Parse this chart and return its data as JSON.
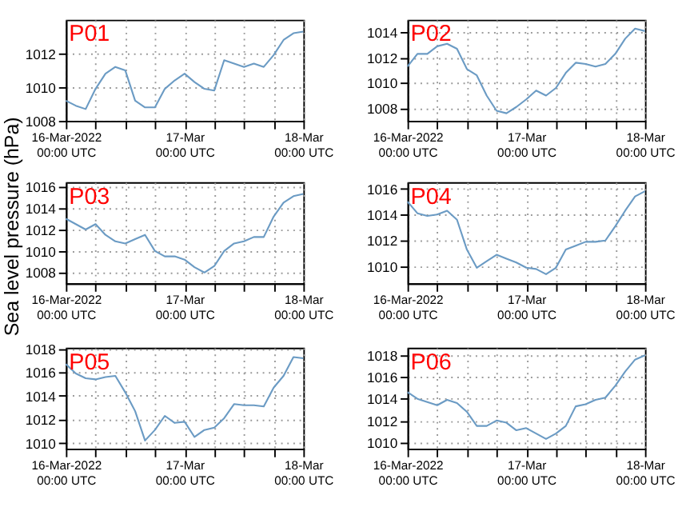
{
  "chart_data": [
    {
      "type": "line",
      "title": "P01",
      "color": "#6b9bc4",
      "grid": true,
      "x": [
        "2022-03-16T00:00",
        "2022-03-16T02:00",
        "2022-03-16T04:00",
        "2022-03-16T06:00",
        "2022-03-16T08:00",
        "2022-03-16T10:00",
        "2022-03-16T12:00",
        "2022-03-16T14:00",
        "2022-03-16T16:00",
        "2022-03-16T18:00",
        "2022-03-16T20:00",
        "2022-03-16T22:00",
        "2022-03-17T00:00",
        "2022-03-17T02:00",
        "2022-03-17T04:00",
        "2022-03-17T06:00",
        "2022-03-17T08:00",
        "2022-03-17T10:00",
        "2022-03-17T12:00",
        "2022-03-17T14:00",
        "2022-03-17T16:00",
        "2022-03-17T18:00",
        "2022-03-17T20:00",
        "2022-03-17T22:00",
        "2022-03-18T00:00"
      ],
      "values": [
        1009.2,
        1008.9,
        1008.7,
        1009.9,
        1010.8,
        1011.2,
        1011.0,
        1009.2,
        1008.8,
        1008.8,
        1009.9,
        1010.4,
        1010.8,
        1010.3,
        1009.9,
        1009.8,
        1011.6,
        1011.4,
        1011.2,
        1011.4,
        1011.2,
        1011.9,
        1012.8,
        1013.2,
        1013.3
      ],
      "xlim": [
        "2022-03-16T00:00",
        "2022-03-18T00:00"
      ],
      "xticks": [
        {
          "value": "2022-03-16T00:00",
          "label": "16-Mar-2022\n00:00 UTC"
        },
        {
          "value": "2022-03-16T06:00",
          "label": null
        },
        {
          "value": "2022-03-16T12:00",
          "label": null
        },
        {
          "value": "2022-03-16T18:00",
          "label": null
        },
        {
          "value": "2022-03-17T00:00",
          "label": "17-Mar\n00:00 UTC"
        },
        {
          "value": "2022-03-17T06:00",
          "label": null
        },
        {
          "value": "2022-03-17T12:00",
          "label": null
        },
        {
          "value": "2022-03-17T18:00",
          "label": null
        },
        {
          "value": "2022-03-18T00:00",
          "label": "18-Mar\n00:00 UTC"
        }
      ],
      "ylim": [
        1008,
        1014
      ],
      "yticks": [
        1008,
        1010,
        1012
      ]
    },
    {
      "type": "line",
      "title": "P02",
      "color": "#6b9bc4",
      "grid": true,
      "x": [
        "2022-03-16T00:00",
        "2022-03-16T02:00",
        "2022-03-16T04:00",
        "2022-03-16T06:00",
        "2022-03-16T08:00",
        "2022-03-16T10:00",
        "2022-03-16T12:00",
        "2022-03-16T14:00",
        "2022-03-16T16:00",
        "2022-03-16T18:00",
        "2022-03-16T20:00",
        "2022-03-16T22:00",
        "2022-03-17T00:00",
        "2022-03-17T02:00",
        "2022-03-17T04:00",
        "2022-03-17T06:00",
        "2022-03-17T08:00",
        "2022-03-17T10:00",
        "2022-03-17T12:00",
        "2022-03-17T14:00",
        "2022-03-17T16:00",
        "2022-03-17T18:00",
        "2022-03-17T20:00",
        "2022-03-17T22:00",
        "2022-03-18T00:00"
      ],
      "values": [
        1011.3,
        1012.3,
        1012.3,
        1012.9,
        1013.1,
        1012.7,
        1011.1,
        1010.6,
        1009.0,
        1007.8,
        1007.6,
        1008.1,
        1008.7,
        1009.4,
        1009.0,
        1009.6,
        1010.8,
        1011.6,
        1011.5,
        1011.3,
        1011.5,
        1012.3,
        1013.5,
        1014.3,
        1014.1
      ],
      "xlim": [
        "2022-03-16T00:00",
        "2022-03-18T00:00"
      ],
      "xticks": [
        {
          "value": "2022-03-16T00:00",
          "label": "16-Mar-2022\n00:00 UTC"
        },
        {
          "value": "2022-03-16T06:00",
          "label": null
        },
        {
          "value": "2022-03-16T12:00",
          "label": null
        },
        {
          "value": "2022-03-16T18:00",
          "label": null
        },
        {
          "value": "2022-03-17T00:00",
          "label": "17-Mar\n00:00 UTC"
        },
        {
          "value": "2022-03-17T06:00",
          "label": null
        },
        {
          "value": "2022-03-17T12:00",
          "label": null
        },
        {
          "value": "2022-03-17T18:00",
          "label": null
        },
        {
          "value": "2022-03-18T00:00",
          "label": "18-Mar\n00:00 UTC"
        }
      ],
      "ylim": [
        1007,
        1015
      ],
      "yticks": [
        1008,
        1010,
        1012,
        1014
      ]
    },
    {
      "type": "line",
      "title": "P03",
      "ylabel": "Sea level pressure (hPa)",
      "color": "#6b9bc4",
      "grid": true,
      "x": [
        "2022-03-16T00:00",
        "2022-03-16T02:00",
        "2022-03-16T04:00",
        "2022-03-16T06:00",
        "2022-03-16T08:00",
        "2022-03-16T10:00",
        "2022-03-16T12:00",
        "2022-03-16T14:00",
        "2022-03-16T16:00",
        "2022-03-16T18:00",
        "2022-03-16T20:00",
        "2022-03-16T22:00",
        "2022-03-17T00:00",
        "2022-03-17T02:00",
        "2022-03-17T04:00",
        "2022-03-17T06:00",
        "2022-03-17T08:00",
        "2022-03-17T10:00",
        "2022-03-17T12:00",
        "2022-03-17T14:00",
        "2022-03-17T16:00",
        "2022-03-17T18:00",
        "2022-03-17T20:00",
        "2022-03-17T22:00",
        "2022-03-18T00:00"
      ],
      "values": [
        1013.0,
        1012.5,
        1012.0,
        1012.5,
        1011.5,
        1010.9,
        1010.7,
        1011.1,
        1011.5,
        1010.0,
        1009.5,
        1009.5,
        1009.2,
        1008.5,
        1008.0,
        1008.6,
        1010.0,
        1010.7,
        1010.9,
        1011.3,
        1011.3,
        1013.2,
        1014.5,
        1015.1,
        1015.3
      ],
      "xlim": [
        "2022-03-16T00:00",
        "2022-03-18T00:00"
      ],
      "xticks": [
        {
          "value": "2022-03-16T00:00",
          "label": "16-Mar-2022\n00:00 UTC"
        },
        {
          "value": "2022-03-16T06:00",
          "label": null
        },
        {
          "value": "2022-03-16T12:00",
          "label": null
        },
        {
          "value": "2022-03-16T18:00",
          "label": null
        },
        {
          "value": "2022-03-17T00:00",
          "label": "17-Mar\n00:00 UTC"
        },
        {
          "value": "2022-03-17T06:00",
          "label": null
        },
        {
          "value": "2022-03-17T12:00",
          "label": null
        },
        {
          "value": "2022-03-17T18:00",
          "label": null
        },
        {
          "value": "2022-03-18T00:00",
          "label": "18-Mar\n00:00 UTC"
        }
      ],
      "ylim": [
        1007,
        1016.4
      ],
      "yticks": [
        1008,
        1010,
        1012,
        1014,
        1016
      ]
    },
    {
      "type": "line",
      "title": "P04",
      "color": "#6b9bc4",
      "grid": true,
      "x": [
        "2022-03-16T00:00",
        "2022-03-16T02:00",
        "2022-03-16T04:00",
        "2022-03-16T06:00",
        "2022-03-16T08:00",
        "2022-03-16T10:00",
        "2022-03-16T12:00",
        "2022-03-16T14:00",
        "2022-03-16T16:00",
        "2022-03-16T18:00",
        "2022-03-16T20:00",
        "2022-03-16T22:00",
        "2022-03-17T00:00",
        "2022-03-17T02:00",
        "2022-03-17T04:00",
        "2022-03-17T06:00",
        "2022-03-17T08:00",
        "2022-03-17T10:00",
        "2022-03-17T12:00",
        "2022-03-17T14:00",
        "2022-03-17T16:00",
        "2022-03-17T18:00",
        "2022-03-17T20:00",
        "2022-03-17T22:00",
        "2022-03-18T00:00"
      ],
      "values": [
        1015.0,
        1014.1,
        1013.9,
        1014.0,
        1014.3,
        1013.6,
        1011.3,
        1009.9,
        1010.4,
        1010.9,
        1010.6,
        1010.3,
        1009.9,
        1009.8,
        1009.4,
        1009.9,
        1011.3,
        1011.6,
        1011.9,
        1011.9,
        1012.0,
        1013.1,
        1014.3,
        1015.4,
        1015.8
      ],
      "xlim": [
        "2022-03-16T00:00",
        "2022-03-18T00:00"
      ],
      "xticks": [
        {
          "value": "2022-03-16T00:00",
          "label": "16-Mar-2022\n00:00 UTC"
        },
        {
          "value": "2022-03-16T06:00",
          "label": null
        },
        {
          "value": "2022-03-16T12:00",
          "label": null
        },
        {
          "value": "2022-03-16T18:00",
          "label": null
        },
        {
          "value": "2022-03-17T00:00",
          "label": "17-Mar\n00:00 UTC"
        },
        {
          "value": "2022-03-17T06:00",
          "label": null
        },
        {
          "value": "2022-03-17T12:00",
          "label": null
        },
        {
          "value": "2022-03-17T18:00",
          "label": null
        },
        {
          "value": "2022-03-18T00:00",
          "label": "18-Mar\n00:00 UTC"
        }
      ],
      "ylim": [
        1008.7,
        1016.5
      ],
      "yticks": [
        1010,
        1012,
        1014,
        1016
      ]
    },
    {
      "type": "line",
      "title": "P05",
      "color": "#6b9bc4",
      "grid": true,
      "x": [
        "2022-03-16T00:00",
        "2022-03-16T02:00",
        "2022-03-16T04:00",
        "2022-03-16T06:00",
        "2022-03-16T08:00",
        "2022-03-16T10:00",
        "2022-03-16T12:00",
        "2022-03-16T14:00",
        "2022-03-16T16:00",
        "2022-03-16T18:00",
        "2022-03-16T20:00",
        "2022-03-16T22:00",
        "2022-03-17T00:00",
        "2022-03-17T02:00",
        "2022-03-17T04:00",
        "2022-03-17T06:00",
        "2022-03-17T08:00",
        "2022-03-17T10:00",
        "2022-03-17T12:00",
        "2022-03-17T14:00",
        "2022-03-17T16:00",
        "2022-03-17T18:00",
        "2022-03-17T20:00",
        "2022-03-17T22:00",
        "2022-03-18T00:00"
      ],
      "values": [
        1016.7,
        1015.9,
        1015.5,
        1015.4,
        1015.6,
        1015.7,
        1014.3,
        1012.7,
        1010.2,
        1011.1,
        1012.3,
        1011.7,
        1011.8,
        1010.5,
        1011.1,
        1011.3,
        1012.1,
        1013.3,
        1013.2,
        1013.2,
        1013.1,
        1014.7,
        1015.7,
        1017.3,
        1017.2
      ],
      "xlim": [
        "2022-03-16T00:00",
        "2022-03-18T00:00"
      ],
      "xticks": [
        {
          "value": "2022-03-16T00:00",
          "label": "16-Mar-2022\n00:00 UTC"
        },
        {
          "value": "2022-03-16T06:00",
          "label": null
        },
        {
          "value": "2022-03-16T12:00",
          "label": null
        },
        {
          "value": "2022-03-16T18:00",
          "label": null
        },
        {
          "value": "2022-03-17T00:00",
          "label": "17-Mar\n00:00 UTC"
        },
        {
          "value": "2022-03-17T06:00",
          "label": null
        },
        {
          "value": "2022-03-17T12:00",
          "label": null
        },
        {
          "value": "2022-03-17T18:00",
          "label": null
        },
        {
          "value": "2022-03-18T00:00",
          "label": "18-Mar\n00:00 UTC"
        }
      ],
      "ylim": [
        1009.5,
        1018.1
      ],
      "yticks": [
        1010,
        1012,
        1014,
        1016,
        1018
      ]
    },
    {
      "type": "line",
      "title": "P06",
      "color": "#6b9bc4",
      "grid": true,
      "x": [
        "2022-03-16T00:00",
        "2022-03-16T02:00",
        "2022-03-16T04:00",
        "2022-03-16T06:00",
        "2022-03-16T08:00",
        "2022-03-16T10:00",
        "2022-03-16T12:00",
        "2022-03-16T14:00",
        "2022-03-16T16:00",
        "2022-03-16T18:00",
        "2022-03-16T20:00",
        "2022-03-16T22:00",
        "2022-03-17T00:00",
        "2022-03-17T02:00",
        "2022-03-17T04:00",
        "2022-03-17T06:00",
        "2022-03-17T08:00",
        "2022-03-17T10:00",
        "2022-03-17T12:00",
        "2022-03-17T14:00",
        "2022-03-17T16:00",
        "2022-03-17T18:00",
        "2022-03-17T20:00",
        "2022-03-17T22:00",
        "2022-03-18T00:00"
      ],
      "values": [
        1014.6,
        1014.0,
        1013.7,
        1013.4,
        1013.9,
        1013.6,
        1012.8,
        1011.5,
        1011.5,
        1012.0,
        1011.8,
        1011.1,
        1011.3,
        1010.8,
        1010.3,
        1010.8,
        1011.5,
        1013.3,
        1013.5,
        1013.9,
        1014.1,
        1015.2,
        1016.5,
        1017.6,
        1018.0
      ],
      "xlim": [
        "2022-03-16T00:00",
        "2022-03-18T00:00"
      ],
      "xticks": [
        {
          "value": "2022-03-16T00:00",
          "label": "16-Mar-2022\n00:00 UTC"
        },
        {
          "value": "2022-03-16T06:00",
          "label": null
        },
        {
          "value": "2022-03-16T12:00",
          "label": null
        },
        {
          "value": "2022-03-16T18:00",
          "label": null
        },
        {
          "value": "2022-03-17T00:00",
          "label": "17-Mar\n00:00 UTC"
        },
        {
          "value": "2022-03-17T06:00",
          "label": null
        },
        {
          "value": "2022-03-17T12:00",
          "label": null
        },
        {
          "value": "2022-03-17T18:00",
          "label": null
        },
        {
          "value": "2022-03-18T00:00",
          "label": "18-Mar\n00:00 UTC"
        }
      ],
      "ylim": [
        1009.4,
        1018.7
      ],
      "yticks": [
        1010,
        1012,
        1014,
        1016,
        1018
      ]
    }
  ]
}
